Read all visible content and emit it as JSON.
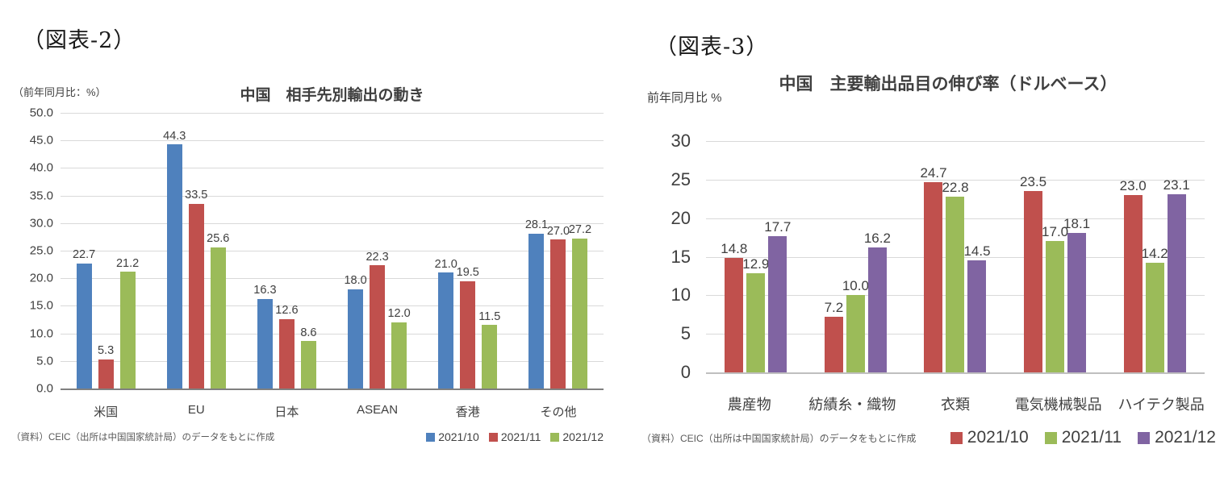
{
  "chart_data": [
    {
      "type": "bar",
      "figure_label": "（図表-2）",
      "title": "中国　相手先別輸出の動き",
      "ylabel": "（前年同月比：%）",
      "xlabel": "",
      "categories": [
        "米国",
        "EU",
        "日本",
        "ASEAN",
        "香港",
        "その他"
      ],
      "series": [
        {
          "name": "2021/10",
          "color": "#4F81BD",
          "values": [
            22.7,
            44.3,
            16.3,
            18.0,
            21.0,
            28.1
          ]
        },
        {
          "name": "2021/11",
          "color": "#C0504D",
          "values": [
            5.3,
            33.5,
            12.6,
            22.3,
            19.5,
            27.0
          ]
        },
        {
          "name": "2021/12",
          "color": "#9BBB59",
          "values": [
            21.2,
            25.6,
            8.6,
            12.0,
            11.5,
            27.2
          ]
        }
      ],
      "ylim": [
        0,
        50
      ],
      "ytick_step": 5,
      "ytick_format": "one_decimal",
      "value_label_decimals": 1,
      "grid": true,
      "grid_color": "#d9d9d9",
      "baseline_color": "#808080",
      "legend_position": "bottom-right",
      "source": "（資料）CEIC（出所は中国国家統計局）のデータをもとに作成"
    },
    {
      "type": "bar",
      "figure_label": "（図表-3）",
      "title": "中国　主要輸出品目の伸び率（ドルベース）",
      "ylabel": "前年同月比 %",
      "xlabel": "",
      "categories": [
        "農産物",
        "紡績糸・織物",
        "衣類",
        "電気機械製品",
        "ハイテク製品"
      ],
      "series": [
        {
          "name": "2021/10",
          "color": "#C0504D",
          "values": [
            14.8,
            7.2,
            24.7,
            23.5,
            23.0
          ]
        },
        {
          "name": "2021/11",
          "color": "#9BBB59",
          "values": [
            12.9,
            10.0,
            22.8,
            17.0,
            14.2
          ]
        },
        {
          "name": "2021/12",
          "color": "#8064A2",
          "values": [
            17.7,
            16.2,
            14.5,
            18.1,
            23.1
          ]
        }
      ],
      "ylim": [
        0,
        30
      ],
      "ytick_step": 5,
      "ytick_format": "integer",
      "value_label_decimals": 1,
      "grid": true,
      "grid_color": "#d9d9d9",
      "baseline_color": "#bfbfbf",
      "legend_position": "bottom-right",
      "source": "（資料）CEIC（出所は中国国家統計局）のデータをもとに作成"
    }
  ]
}
